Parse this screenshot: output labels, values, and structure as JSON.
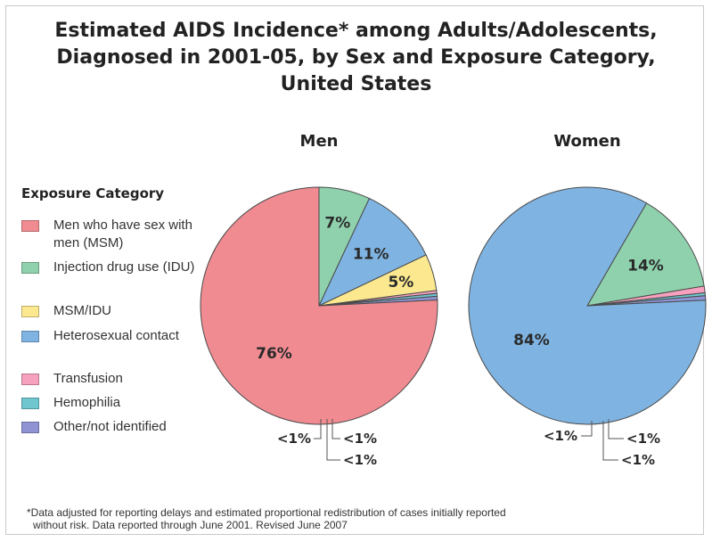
{
  "title_lines": [
    "Estimated AIDS Incidence* among Adults/Adolescents,",
    "Diagnosed in 2001-05, by Sex and Exposure Category,",
    "United States"
  ],
  "legend": {
    "title": "Exposure Category",
    "items": [
      {
        "label": "Men who have sex with men (MSM)",
        "color": "#f08b91"
      },
      {
        "label": "Injection drug use (IDU)",
        "color": "#8fd1ad"
      },
      {
        "label": "MSM/IDU",
        "color": "#fbe88f"
      },
      {
        "label": "Heterosexual contact",
        "color": "#7fb4e2"
      },
      {
        "label": "Transfusion",
        "color": "#f6a1bd"
      },
      {
        "label": "Hemophilia",
        "color": "#6fc6cf"
      },
      {
        "label": "Other/not identified",
        "color": "#8f93d4"
      }
    ]
  },
  "chart_data": [
    {
      "type": "pie",
      "title": "Men",
      "start_angle_deg": 0,
      "slices": [
        {
          "category": "Injection drug use (IDU)",
          "value": 7,
          "label": "7%"
        },
        {
          "category": "Heterosexual contact",
          "value": 11,
          "label": "11%"
        },
        {
          "category": "MSM/IDU",
          "value": 5,
          "label": "5%"
        },
        {
          "category": "Transfusion",
          "value": 0.4,
          "label": "<1%"
        },
        {
          "category": "Hemophilia",
          "value": 0.4,
          "label": "<1%"
        },
        {
          "category": "Other/not identified",
          "value": 0.5,
          "label": "<1%"
        },
        {
          "category": "Men who have sex with men (MSM)",
          "value": 76,
          "label": "76%"
        }
      ]
    },
    {
      "type": "pie",
      "title": "Women",
      "start_angle_deg": 30,
      "slices": [
        {
          "category": "Injection drug use (IDU)",
          "value": 14,
          "label": "14%"
        },
        {
          "category": "Transfusion",
          "value": 0.9,
          "label": "<1%"
        },
        {
          "category": "Hemophilia",
          "value": 0.4,
          "label": ""
        },
        {
          "category": "Other/not identified",
          "value": 0.6,
          "label": "<1%"
        },
        {
          "category": "Heterosexual contact",
          "value": 84,
          "label": "84%"
        }
      ]
    }
  ],
  "footnote_lines": [
    "*Data adjusted for reporting delays and estimated proportional redistribution of cases initially reported",
    "without risk. Data reported through June 2001. Revised June 2007"
  ]
}
